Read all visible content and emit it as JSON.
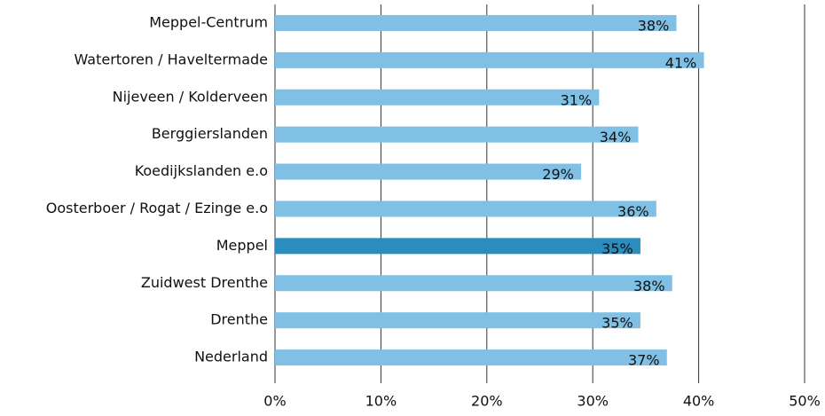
{
  "chart_data": {
    "type": "barh",
    "categories": [
      "Meppel-Centrum",
      "Watertoren / Haveltermade",
      "Nijeveen / Kolderveen",
      "Berggierslanden",
      "Koedijkslanden e.o",
      "Oosterboer / Rogat / Ezinge e.o",
      "Meppel",
      "Zuidwest Drenthe",
      "Drenthe",
      "Nederland"
    ],
    "values": [
      37.9,
      40.5,
      30.6,
      34.3,
      28.9,
      36.0,
      34.5,
      37.5,
      34.5,
      37.0
    ],
    "value_labels": [
      "38%",
      "41%",
      "31%",
      "34%",
      "29%",
      "36%",
      "35%",
      "38%",
      "35%",
      "37%"
    ],
    "colors": [
      "#7fc0e4",
      "#7fc0e4",
      "#7fc0e4",
      "#7fc0e4",
      "#7fc0e4",
      "#7fc0e4",
      "#2b8cbe",
      "#7fc0e4",
      "#7fc0e4",
      "#7fc0e4"
    ],
    "xlim": [
      0,
      50
    ],
    "xticks": [
      {
        "value": 0,
        "label": "0%"
      },
      {
        "value": 10,
        "label": "10%"
      },
      {
        "value": 20,
        "label": "20%"
      },
      {
        "value": 30,
        "label": "30%"
      },
      {
        "value": 40,
        "label": "40%"
      },
      {
        "value": 50,
        "label": "50%"
      }
    ],
    "grid": true
  }
}
